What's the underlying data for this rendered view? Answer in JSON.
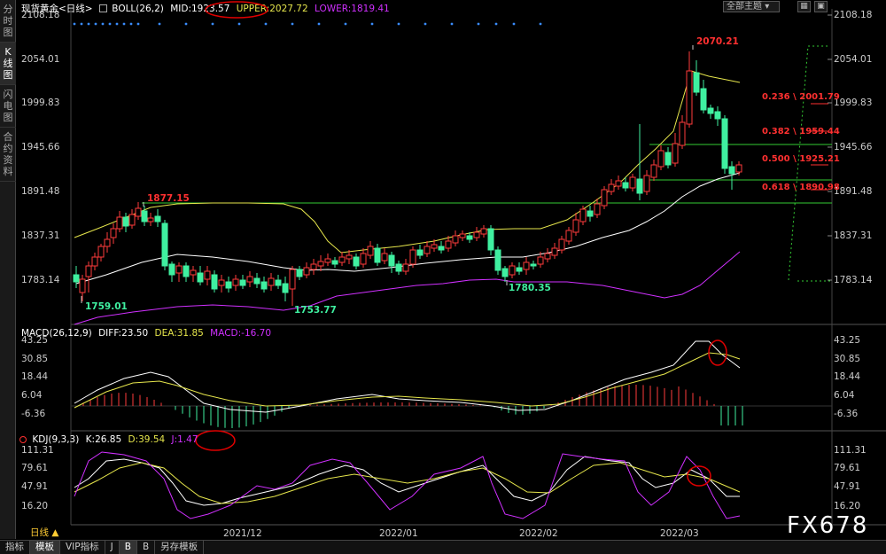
{
  "left_tabs": [
    "分时图",
    "K线图",
    "闪电图",
    "合约资料"
  ],
  "main_panel": {
    "instrument": "现货黄金<日线>",
    "indicator": "BOLL(26,2)",
    "mid": "MID:1923.57",
    "upper": "UPPER:2027.72",
    "lower": "LOWER:1819.41",
    "y_ticks_right": [
      "2108.18",
      "2054.01",
      "1999.83",
      "1945.66",
      "1891.48",
      "1837.31",
      "1783.14"
    ],
    "y_ticks_left": [
      "2108.18",
      "2054.01",
      "1999.83",
      "1945.66",
      "1891.48",
      "1837.31",
      "1783.14"
    ],
    "price_labels": {
      "high_2070": "2070.21",
      "high_1877": "1877.15",
      "low_1759": "1759.01",
      "low_1753": "1753.77",
      "low_1780": "1780.35"
    },
    "fib_levels": [
      "0.236 \\ 2001.79",
      "0.382 \\ 1959.44",
      "0.500 \\ 1925.21",
      "0.618 \\ 1890.98"
    ]
  },
  "macd_panel": {
    "indicator": "MACD(26,12,9)",
    "diff": "DIFF:23.50",
    "dea": "DEA:31.85",
    "macd": "MACD:-16.70",
    "y_ticks": [
      "43.25",
      "30.85",
      "18.44",
      "6.04",
      "-6.36"
    ]
  },
  "kdj_panel": {
    "indicator": "KDJ(9,3,3)",
    "k": "K:26.85",
    "d": "D:39.54",
    "j": "J:1.47",
    "y_ticks": [
      "111.31",
      "79.61",
      "47.91",
      "16.20"
    ]
  },
  "x_labels": [
    "2021/12",
    "2022/01",
    "2022/02",
    "2022/03"
  ],
  "toolbar": {
    "theme_button": "全部主题",
    "menu_icon": "▾",
    "icon_a": "▦",
    "icon_b": "▣"
  },
  "bottom_tabs": {
    "period": "日线 ▲",
    "tabs": [
      "指标",
      "模板",
      "VIP指标",
      "J",
      "B",
      "B",
      "另存模板"
    ]
  },
  "watermark": "FX678",
  "colors": {
    "up": "#ff3b3b",
    "down": "#3ff0a0",
    "boll_mid": "#ffffff",
    "boll_upper": "#e6e64c",
    "boll_lower": "#d030ff",
    "hline": "#33cc33",
    "annotation": "#e00000"
  }
}
